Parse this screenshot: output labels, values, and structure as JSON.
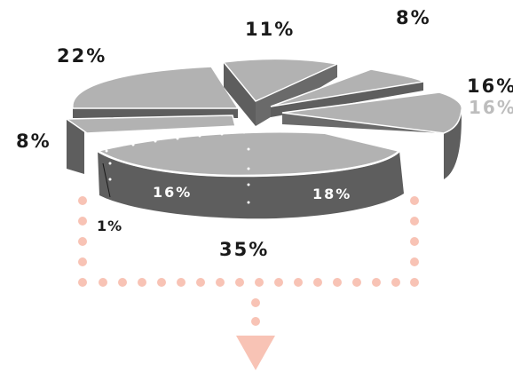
{
  "chart_data": {
    "type": "pie",
    "title": "",
    "slices": [
      {
        "label": "22%",
        "value": 22
      },
      {
        "label": "11%",
        "value": 11
      },
      {
        "label": "8%",
        "value": 8
      },
      {
        "label": "16%",
        "value": 16
      },
      {
        "label": "35%",
        "value": 35
      },
      {
        "label": "8%",
        "value": 8
      }
    ],
    "exploded_slice_breakdown": [
      {
        "label": "16%",
        "value": 16
      },
      {
        "label": "18%",
        "value": 18
      },
      {
        "label": "1%",
        "value": 1
      }
    ],
    "colors": {
      "top": "#b2b2b2",
      "side": "#5e5e5e",
      "edge": "#ffffff",
      "connector": "#f8c3b5"
    }
  }
}
